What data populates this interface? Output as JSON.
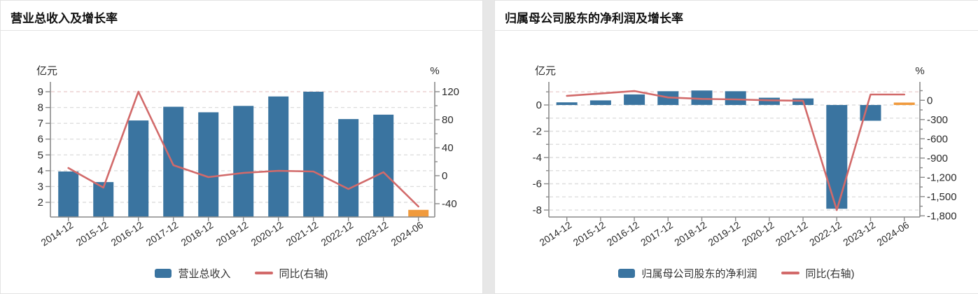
{
  "colors": {
    "bar_blue": "#3a74a0",
    "bar_orange": "#f09a3c",
    "line_red": "#d26a6a",
    "grid": "#dedede",
    "grid_top_pink": "#ecd0d0",
    "axis": "#8a8a8a",
    "tick_text": "#2b2b2b",
    "title_text": "#111111"
  },
  "chart_data": [
    {
      "type": "bar+line",
      "title": "营业总收入及增长率",
      "unit_left": "亿元",
      "unit_right": "%",
      "categories": [
        "2014-12",
        "2015-12",
        "2016-12",
        "2017-12",
        "2018-12",
        "2019-12",
        "2020-12",
        "2021-12",
        "2022-12",
        "2023-12",
        "2024-06"
      ],
      "bar_series": {
        "name": "营业总收入",
        "unit": "亿元",
        "values": [
          3.95,
          3.28,
          7.18,
          8.05,
          7.7,
          8.1,
          8.7,
          9.0,
          7.27,
          7.55,
          1.52
        ],
        "highlight_last": true,
        "from_zero": false
      },
      "line_series": {
        "name": "同比(右轴)",
        "unit": "%",
        "values": [
          11,
          -17,
          120,
          15,
          -2,
          4,
          7,
          6,
          -19,
          5,
          -44
        ]
      },
      "left_axis": {
        "min": 1.07,
        "max": 9.4,
        "ticks": [
          9,
          8,
          7,
          6,
          5,
          4,
          3,
          2
        ],
        "tick_labels": [
          "9",
          "8",
          "7",
          "6",
          "5",
          "4",
          "3",
          "2"
        ],
        "minor_ticks": []
      },
      "right_axis": {
        "min": -59,
        "max": 129,
        "ticks": [
          120,
          80,
          40,
          0,
          -40
        ],
        "tick_labels": [
          "120",
          "80",
          "40",
          "0",
          "-40"
        ],
        "minor_ticks": [
          100,
          60,
          20,
          -20
        ]
      },
      "grid": {
        "values": [
          9,
          8,
          7,
          6,
          5,
          4,
          3,
          2
        ],
        "top_value": 9
      },
      "legend": [
        {
          "type": "bar",
          "label": "营业总收入"
        },
        {
          "type": "line",
          "label": "同比(右轴)"
        }
      ]
    },
    {
      "type": "bar+line",
      "title": "归属母公司股东的净利润及增长率",
      "unit_left": "亿元",
      "unit_right": "%",
      "categories": [
        "2014-12",
        "2015-12",
        "2016-12",
        "2017-12",
        "2018-12",
        "2019-12",
        "2020-12",
        "2021-12",
        "2022-12",
        "2023-12",
        "2024-06"
      ],
      "bar_series": {
        "name": "归属母公司股东的净利润",
        "unit": "亿元",
        "values": [
          0.2,
          0.35,
          0.8,
          1.05,
          1.1,
          1.05,
          0.55,
          0.5,
          -7.9,
          -1.2,
          0.05
        ],
        "highlight_last": true,
        "from_zero": true
      },
      "line_series": {
        "name": "同比(右轴)",
        "unit": "%",
        "values": [
          70,
          105,
          145,
          44,
          22,
          14,
          0,
          -8,
          -1710,
          90,
          90
        ]
      },
      "left_axis": {
        "min": -8.53,
        "max": 1.49,
        "ticks": [
          0,
          -2,
          -4,
          -6,
          -8
        ],
        "tick_labels": [
          "0",
          "-2",
          "-4",
          "-6",
          "-8"
        ],
        "minor_ticks": [
          1,
          -1,
          -3,
          -5,
          -7
        ]
      },
      "right_axis": {
        "min": -1818,
        "max": 232,
        "ticks": [
          0,
          -300,
          -600,
          -900,
          -1200,
          -1500,
          -1800
        ],
        "tick_labels": [
          "0",
          "-300",
          "-600",
          "-900",
          "-1,200",
          "-1,500",
          "-1,800"
        ],
        "minor_ticks": [
          150,
          -150,
          -450,
          -750,
          -1050,
          -1350,
          -1650
        ]
      },
      "grid": {
        "values": [
          1,
          0,
          -1,
          -2,
          -3,
          -4,
          -5,
          -6,
          -7,
          -8
        ],
        "top_value": 1
      },
      "legend": [
        {
          "type": "bar",
          "label": "归属母公司股东的净利润"
        },
        {
          "type": "line",
          "label": "同比(右轴)"
        }
      ]
    }
  ]
}
